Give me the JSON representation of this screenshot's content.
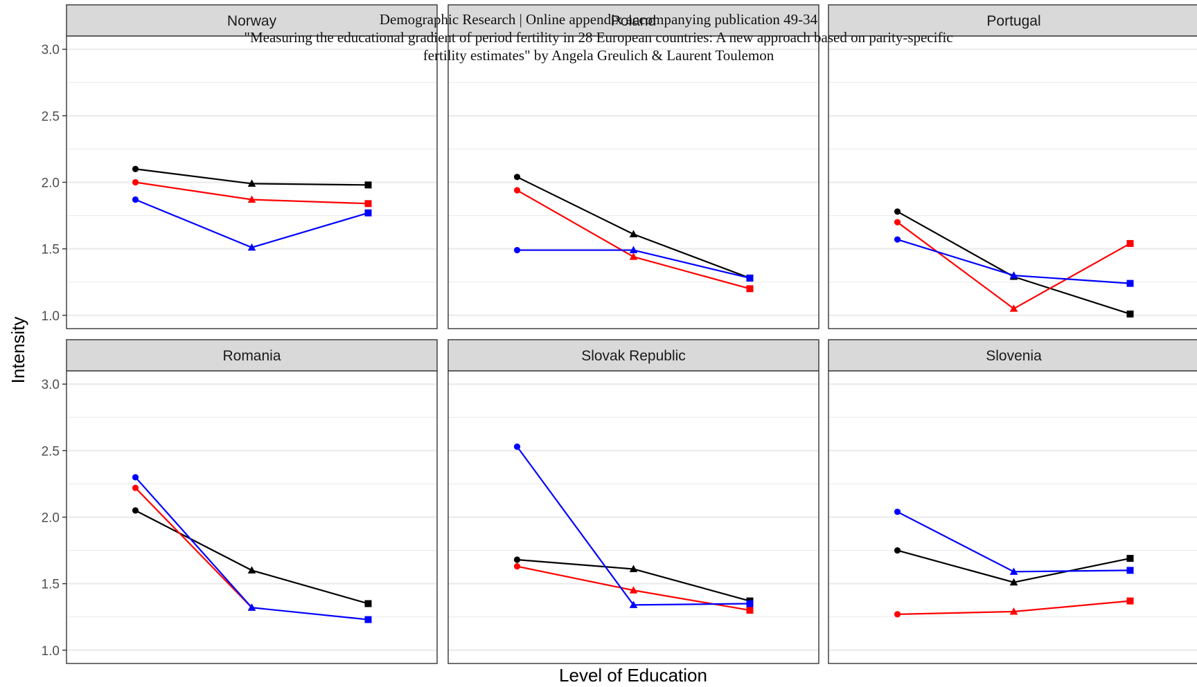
{
  "header": {
    "line1": "Demographic Research | Online appendix accompanying publication 49-34",
    "line2": "\"Measuring the educational gradient of period fertility in 28 European countries: A new approach based on parity-specific",
    "line3": "fertility estimates\" by Angela Greulich & Laurent Toulemon"
  },
  "chart_data": {
    "type": "line",
    "layout": "facet-grid",
    "xlabel": "Level of Education",
    "ylabel": "Intensity",
    "ylim": [
      0.9,
      3.1
    ],
    "y_ticks": [
      "1.0",
      "1.5",
      "2.0",
      "2.5",
      "3.0"
    ],
    "x_ticks": [],
    "grid": true,
    "x_points": 3,
    "colors": {
      "black": "#000000",
      "red": "#ff0000",
      "blue": "#0000ff"
    },
    "markers": [
      "circle",
      "triangle",
      "square"
    ],
    "panels": [
      {
        "title": "Norway",
        "series": [
          {
            "color": "black",
            "values": [
              2.1,
              1.99,
              1.98
            ]
          },
          {
            "color": "red",
            "values": [
              2.0,
              1.87,
              1.84
            ]
          },
          {
            "color": "blue",
            "values": [
              1.87,
              1.51,
              1.77
            ]
          }
        ]
      },
      {
        "title": "Poland",
        "series": [
          {
            "color": "black",
            "values": [
              2.04,
              1.61,
              1.28
            ]
          },
          {
            "color": "red",
            "values": [
              1.94,
              1.44,
              1.2
            ]
          },
          {
            "color": "blue",
            "values": [
              1.49,
              1.49,
              1.28
            ]
          }
        ]
      },
      {
        "title": "Portugal",
        "series": [
          {
            "color": "black",
            "values": [
              1.78,
              1.29,
              1.01
            ]
          },
          {
            "color": "red",
            "values": [
              1.7,
              1.05,
              1.54
            ]
          },
          {
            "color": "blue",
            "values": [
              1.57,
              1.3,
              1.24
            ]
          }
        ]
      },
      {
        "title": "Romania",
        "series": [
          {
            "color": "black",
            "values": [
              2.05,
              1.6,
              1.35
            ]
          },
          {
            "color": "red",
            "values": [
              2.22,
              1.32,
              null
            ]
          },
          {
            "color": "blue",
            "values": [
              2.3,
              1.32,
              1.23
            ]
          }
        ]
      },
      {
        "title": "Slovak Republic",
        "series": [
          {
            "color": "black",
            "values": [
              1.68,
              1.61,
              1.37
            ]
          },
          {
            "color": "red",
            "values": [
              1.63,
              1.45,
              1.3
            ]
          },
          {
            "color": "blue",
            "values": [
              2.53,
              1.34,
              1.35
            ]
          }
        ]
      },
      {
        "title": "Slovenia",
        "series": [
          {
            "color": "black",
            "values": [
              1.75,
              1.51,
              1.69
            ]
          },
          {
            "color": "red",
            "values": [
              1.27,
              1.29,
              1.37
            ]
          },
          {
            "color": "blue",
            "values": [
              2.04,
              1.59,
              1.6
            ]
          }
        ]
      }
    ]
  }
}
